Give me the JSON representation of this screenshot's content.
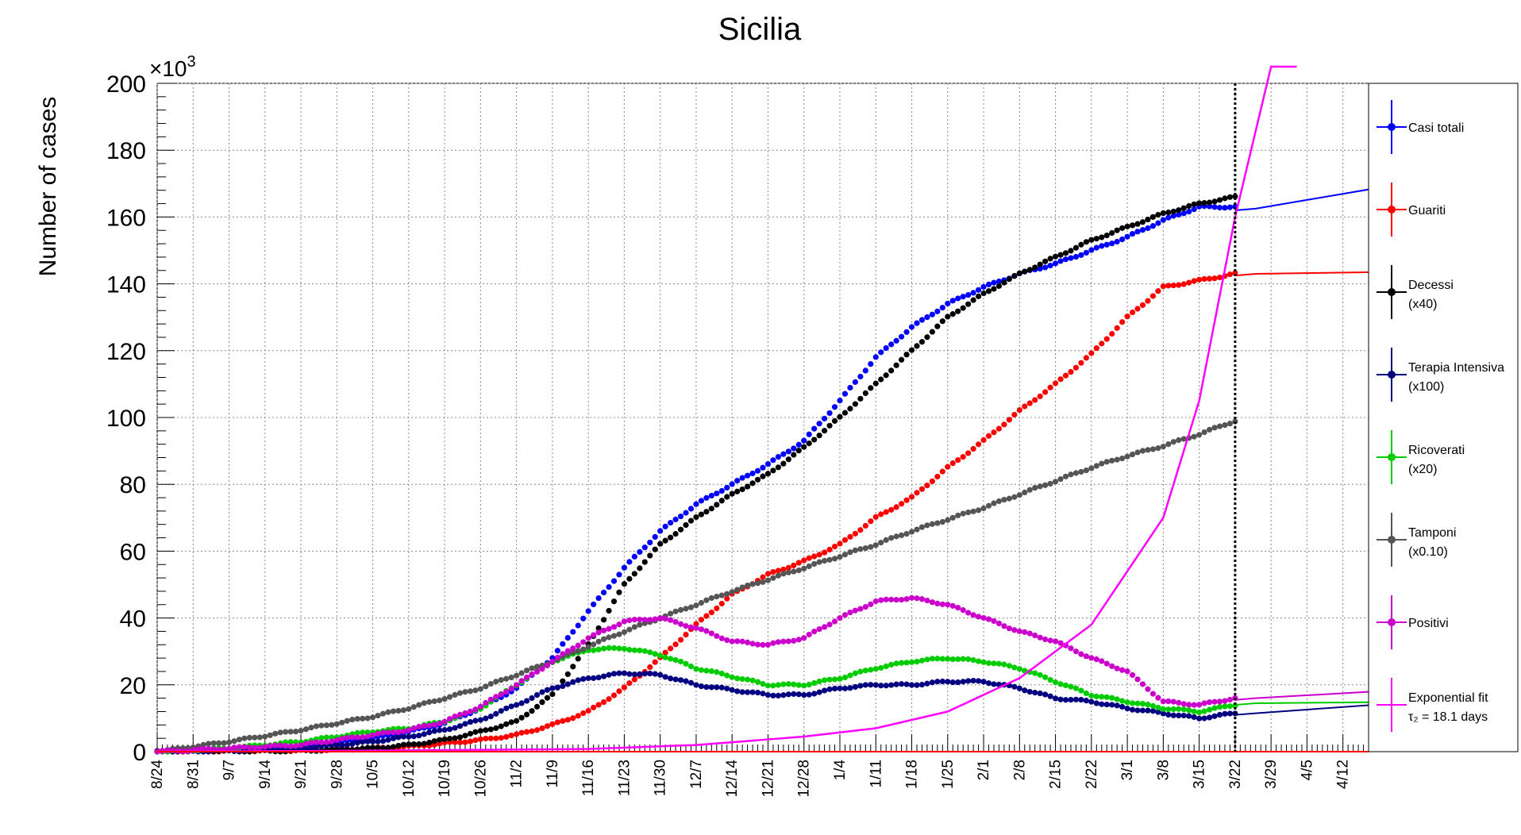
{
  "chart_data": {
    "type": "line",
    "title": "Sicilia",
    "ylabel": "Number of cases",
    "y_multiplier_label": "×10",
    "y_multiplier_exponent": "3",
    "ylim": [
      0,
      200
    ],
    "yticks": [
      0,
      20,
      40,
      60,
      80,
      100,
      120,
      140,
      160,
      180,
      200
    ],
    "x_tick_labels": [
      "8/24",
      "8/31",
      "9/7",
      "9/14",
      "9/21",
      "9/28",
      "10/5",
      "10/12",
      "10/19",
      "10/26",
      "11/2",
      "11/9",
      "11/16",
      "11/23",
      "11/30",
      "12/7",
      "12/14",
      "12/21",
      "12/28",
      "1/4",
      "1/11",
      "1/18",
      "1/25",
      "2/1",
      "2/8",
      "2/15",
      "2/22",
      "3/1",
      "3/8",
      "3/15",
      "3/22",
      "3/29",
      "4/5",
      "4/12"
    ],
    "xlim_days": [
      0,
      236
    ],
    "x_unit": "days since 8/24",
    "vertical_marker_day": 210,
    "grid": true,
    "legend_position": "right",
    "series": [
      {
        "name": "Casi totali",
        "color": "#0000ff",
        "x": [
          0,
          14,
          28,
          42,
          49,
          56,
          63,
          70,
          77,
          84,
          91,
          98,
          105,
          112,
          119,
          126,
          133,
          140,
          147,
          154,
          161,
          168,
          175,
          182,
          189,
          196,
          203,
          210
        ],
        "y": [
          0,
          0.5,
          1.5,
          4,
          6,
          8.5,
          13,
          19,
          28,
          42,
          55,
          66,
          74,
          80,
          86,
          93,
          105,
          118,
          127,
          134,
          139,
          143,
          146,
          150,
          154,
          159,
          163,
          163
        ]
      },
      {
        "name": "Guariti",
        "color": "#ff0000",
        "x": [
          0,
          14,
          28,
          42,
          49,
          56,
          63,
          70,
          77,
          84,
          91,
          98,
          105,
          112,
          119,
          126,
          133,
          140,
          147,
          154,
          161,
          168,
          175,
          182,
          189,
          196,
          203,
          210
        ],
        "y": [
          0,
          0.2,
          0.3,
          1,
          1.5,
          2.5,
          3.5,
          5,
          8,
          12,
          19,
          28,
          38,
          47,
          53,
          57,
          62,
          70,
          76,
          85,
          93,
          102,
          110,
          119,
          130,
          139,
          141,
          143
        ]
      },
      {
        "name": "Decessi",
        "name2": "(x40)",
        "color": "#000000",
        "x": [
          0,
          14,
          28,
          42,
          49,
          56,
          63,
          70,
          77,
          84,
          91,
          98,
          105,
          112,
          119,
          126,
          133,
          140,
          147,
          154,
          161,
          168,
          175,
          182,
          189,
          196,
          203,
          210
        ],
        "y": [
          0,
          0.1,
          0.3,
          1,
          2,
          3.5,
          6,
          9,
          17,
          32,
          50,
          62,
          70,
          77,
          83,
          91,
          100,
          110,
          120,
          130,
          137,
          143,
          148,
          153,
          157,
          161,
          164,
          166
        ]
      },
      {
        "name": "Terapia Intensiva",
        "name2": "(x100)",
        "color": "#000080",
        "x": [
          0,
          14,
          28,
          42,
          49,
          56,
          63,
          70,
          77,
          84,
          91,
          98,
          105,
          112,
          119,
          126,
          133,
          140,
          147,
          154,
          161,
          168,
          175,
          182,
          189,
          196,
          203,
          210
        ],
        "y": [
          0,
          0.3,
          1,
          3,
          4.5,
          6.5,
          9.5,
          14,
          19,
          22,
          23.5,
          23,
          20,
          18.5,
          17,
          17,
          19,
          20,
          20,
          21,
          21,
          19,
          16,
          15,
          13,
          11.5,
          10,
          11.5
        ]
      },
      {
        "name": "Ricoverati",
        "name2": "(x20)",
        "color": "#00cc00",
        "x": [
          0,
          14,
          28,
          42,
          49,
          56,
          63,
          70,
          77,
          84,
          91,
          98,
          105,
          112,
          119,
          126,
          133,
          140,
          147,
          154,
          161,
          168,
          175,
          182,
          189,
          196,
          203,
          210
        ],
        "y": [
          0,
          1,
          3,
          6,
          7,
          9,
          13,
          20,
          27,
          30.5,
          31,
          29,
          25,
          22.5,
          20,
          20,
          22,
          25,
          27,
          28,
          27,
          25,
          21,
          17,
          15,
          13,
          12,
          14
        ]
      },
      {
        "name": "Tamponi",
        "name2": "(x0.10)",
        "color": "#555555",
        "x": [
          0,
          14,
          28,
          42,
          49,
          56,
          63,
          70,
          77,
          84,
          91,
          98,
          105,
          112,
          119,
          126,
          133,
          140,
          147,
          154,
          161,
          168,
          175,
          182,
          189,
          196,
          203,
          210
        ],
        "y": [
          0,
          3,
          6.5,
          10.5,
          13,
          16,
          19,
          23,
          27,
          31.5,
          36,
          40,
          44,
          48,
          51.5,
          55,
          58.5,
          62,
          66,
          69.5,
          73,
          77,
          81,
          85,
          88.5,
          91.5,
          95,
          99
        ]
      },
      {
        "name": "Positivi",
        "color": "#cc00cc",
        "x": [
          0,
          14,
          28,
          42,
          49,
          56,
          63,
          70,
          77,
          84,
          91,
          98,
          105,
          112,
          119,
          126,
          133,
          140,
          147,
          154,
          161,
          168,
          175,
          182,
          189,
          196,
          203,
          210
        ],
        "y": [
          0,
          1,
          2,
          5,
          6.5,
          9,
          13.5,
          20,
          27,
          34,
          39,
          40,
          37,
          33,
          32,
          34,
          40,
          45,
          46,
          44,
          40,
          36,
          33,
          28,
          24,
          15,
          14,
          16
        ]
      },
      {
        "name": "Exponential fit",
        "name2": "τ₂ = 18.1 days",
        "color": "#ff00ff",
        "x": [
          0,
          42,
          84,
          105,
          126,
          140,
          154,
          168,
          182,
          196,
          203,
          210,
          217
        ],
        "y": [
          0,
          0.3,
          0.8,
          2,
          4.5,
          7,
          12,
          22,
          38,
          70,
          105,
          160,
          205
        ]
      }
    ],
    "projection": {
      "x": [
        210,
        214,
        237
      ],
      "Casi totali": [
        162,
        162.5,
        168.5
      ],
      "Guariti": [
        142.5,
        143,
        143.5
      ],
      "Terapia Intensiva": [
        11,
        11.5,
        14
      ],
      "Ricoverati": [
        14,
        14.5,
        14.8
      ],
      "Positivi": [
        15.5,
        16,
        18
      ]
    }
  }
}
